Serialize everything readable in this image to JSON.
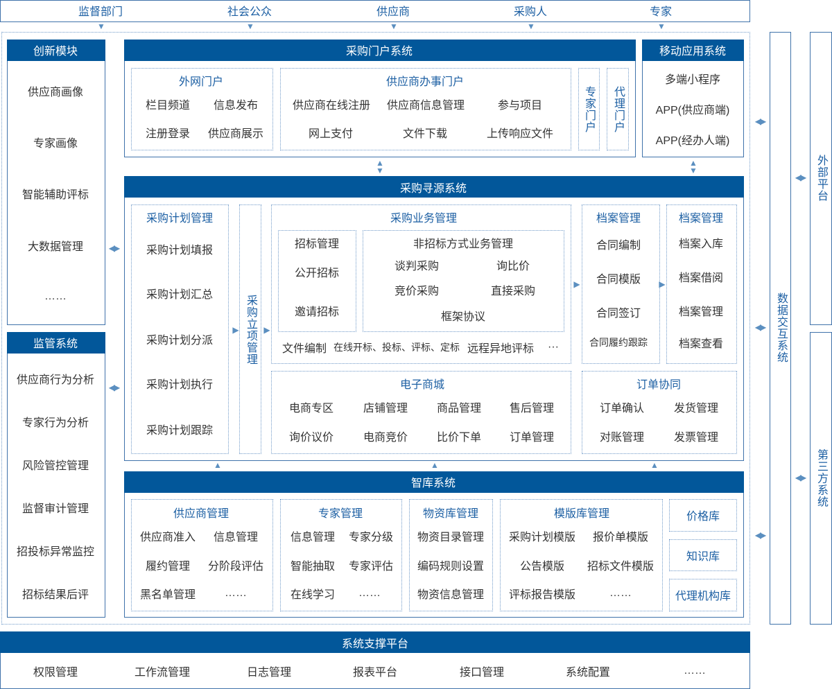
{
  "top_bar": [
    "监督部门",
    "社会公众",
    "供应商",
    "采购人",
    "专家"
  ],
  "innovation": {
    "title": "创新模块",
    "items": [
      "供应商画像",
      "专家画像",
      "智能辅助评标",
      "大数据管理",
      "……"
    ]
  },
  "supervision": {
    "title": "监管系统",
    "items": [
      "供应商行为分析",
      "专家行为分析",
      "风险管控管理",
      "监督审计管理",
      "招投标异常监控",
      "招标结果后评"
    ]
  },
  "portal": {
    "title": "采购门户系统",
    "web": {
      "title": "外网门户",
      "items": [
        "栏目频道",
        "信息发布",
        "注册登录",
        "供应商展示"
      ]
    },
    "supplier": {
      "title": "供应商办事门户",
      "items": [
        "供应商在线注册",
        "供应商信息管理",
        "参与项目",
        "网上支付",
        "文件下载",
        "上传响应文件"
      ]
    },
    "expert": "专家门户",
    "agent": "代理门户"
  },
  "mobile": {
    "title": "移动应用系统",
    "items": [
      "多端小程序",
      "APP(供应商端)",
      "APP(经办人端)"
    ]
  },
  "sourcing": {
    "title": "采购寻源系统",
    "plan": {
      "title": "采购计划管理",
      "items": [
        "采购计划填报",
        "采购计划汇总",
        "采购计划分派",
        "采购计划执行",
        "采购计划跟踪"
      ]
    },
    "project": "采购立项管理",
    "business": {
      "title": "采购业务管理",
      "tender": {
        "title": "招标管理",
        "items": [
          "公开招标",
          "邀请招标"
        ]
      },
      "non_tender": {
        "title": "非招标方式业务管理",
        "items": [
          "谈判采购",
          "询比价",
          "竞价采购",
          "直接采购",
          "框架协议"
        ]
      },
      "bottom": [
        "文件编制",
        "在线开标、投标、评标、定标",
        "远程异地评标",
        "···"
      ]
    },
    "mall": {
      "title": "电子商城",
      "items": [
        "电商专区",
        "店铺管理",
        "商品管理",
        "售后管理",
        "询价议价",
        "电商竞价",
        "比价下单",
        "订单管理"
      ]
    },
    "contract_archive": {
      "title": "档案管理",
      "items": [
        "合同编制",
        "合同模版",
        "合同签订",
        "合同履约跟踪"
      ]
    },
    "archive": {
      "title": "档案管理",
      "items": [
        "档案入库",
        "档案借阅",
        "档案管理",
        "档案查看"
      ]
    },
    "order": {
      "title": "订单协同",
      "items": [
        "订单确认",
        "发货管理",
        "对账管理",
        "发票管理"
      ]
    }
  },
  "think_tank": {
    "title": "智库系统",
    "supplier": {
      "title": "供应商管理",
      "items": [
        "供应商准入",
        "信息管理",
        "履约管理",
        "分阶段评估",
        "黑名单管理",
        "……"
      ]
    },
    "expert": {
      "title": "专家管理",
      "items": [
        "信息管理",
        "专家分级",
        "智能抽取",
        "专家评估",
        "在线学习",
        "……"
      ]
    },
    "material": {
      "title": "物资库管理",
      "items": [
        "物资目录管理",
        "编码规则设置",
        "物资信息管理"
      ]
    },
    "template": {
      "title": "模版库管理",
      "items": [
        "采购计划模版",
        "报价单模版",
        "公告模版",
        "招标文件模版",
        "评标报告模版",
        "……"
      ]
    },
    "price": "价格库",
    "knowledge": "知识库",
    "agency": "代理机构库"
  },
  "data_exchange": "数据交互系统",
  "external": "外部平台",
  "third_party": "第三方系统",
  "support": {
    "title": "系统支撑平台",
    "items": [
      "权限管理",
      "工作流管理",
      "日志管理",
      "报表平台",
      "接口管理",
      "系统配置",
      "……"
    ]
  },
  "colors": {
    "header": "#02579a",
    "arrow": "#5b8fc0",
    "title_text": "#1c5fa3"
  }
}
